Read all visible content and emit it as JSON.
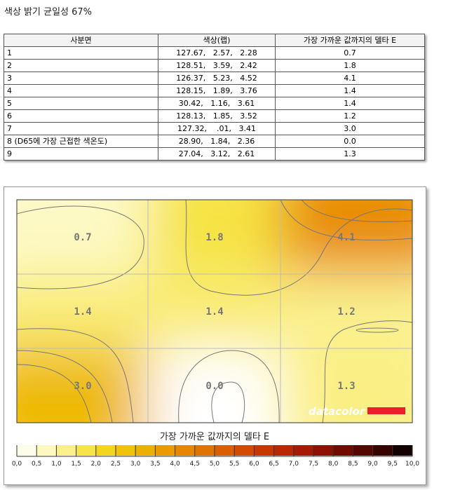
{
  "header": {
    "title": "색상 밝기 균일성 67%"
  },
  "table": {
    "columns": [
      "사분면",
      "색상(랩)",
      "가장 가까운 값까지의 델타 E"
    ],
    "rows": [
      [
        "1",
        "127.67,   2.57,   2.28",
        "0.7"
      ],
      [
        "2",
        "128.51,   3.59,   2.42",
        "1.8"
      ],
      [
        "3",
        "126.37,   5.23,   4.52",
        "4.1"
      ],
      [
        "4",
        "128.15,   1.89,   3.76",
        "1.4"
      ],
      [
        "5",
        "30.42,   1.16,   3.61",
        "1.4"
      ],
      [
        "6",
        "128.13,   1.85,   3.52",
        "1.2"
      ],
      [
        "7",
        "127.32,    .01,   3.41",
        "3.0"
      ],
      [
        "8 (D65에 가장 근접한 색온도)",
        "28.90,   1.84,   2.36",
        "0.0"
      ],
      [
        "9",
        "27.04,   3.12,   2.61",
        "1.3"
      ]
    ]
  },
  "heatmap": {
    "cells": [
      "0.7",
      "1.8",
      "4.1",
      "1.4",
      "1.4",
      "1.2",
      "3.0",
      "0.0",
      "1.3"
    ],
    "logo": "datacolor",
    "legend_title": "가장 가까운 값까지의 델타 E",
    "legend_ticks": [
      "0,0",
      "0,5",
      "1,0",
      "1,5",
      "2,0",
      "2,5",
      "3,0",
      "3,5",
      "4,0",
      "4,5",
      "5,0",
      "5,5",
      "6,0",
      "6,5",
      "7,0",
      "7,5",
      "8,0",
      "8,5",
      "9,0",
      "9,5",
      "10,0"
    ]
  }
}
